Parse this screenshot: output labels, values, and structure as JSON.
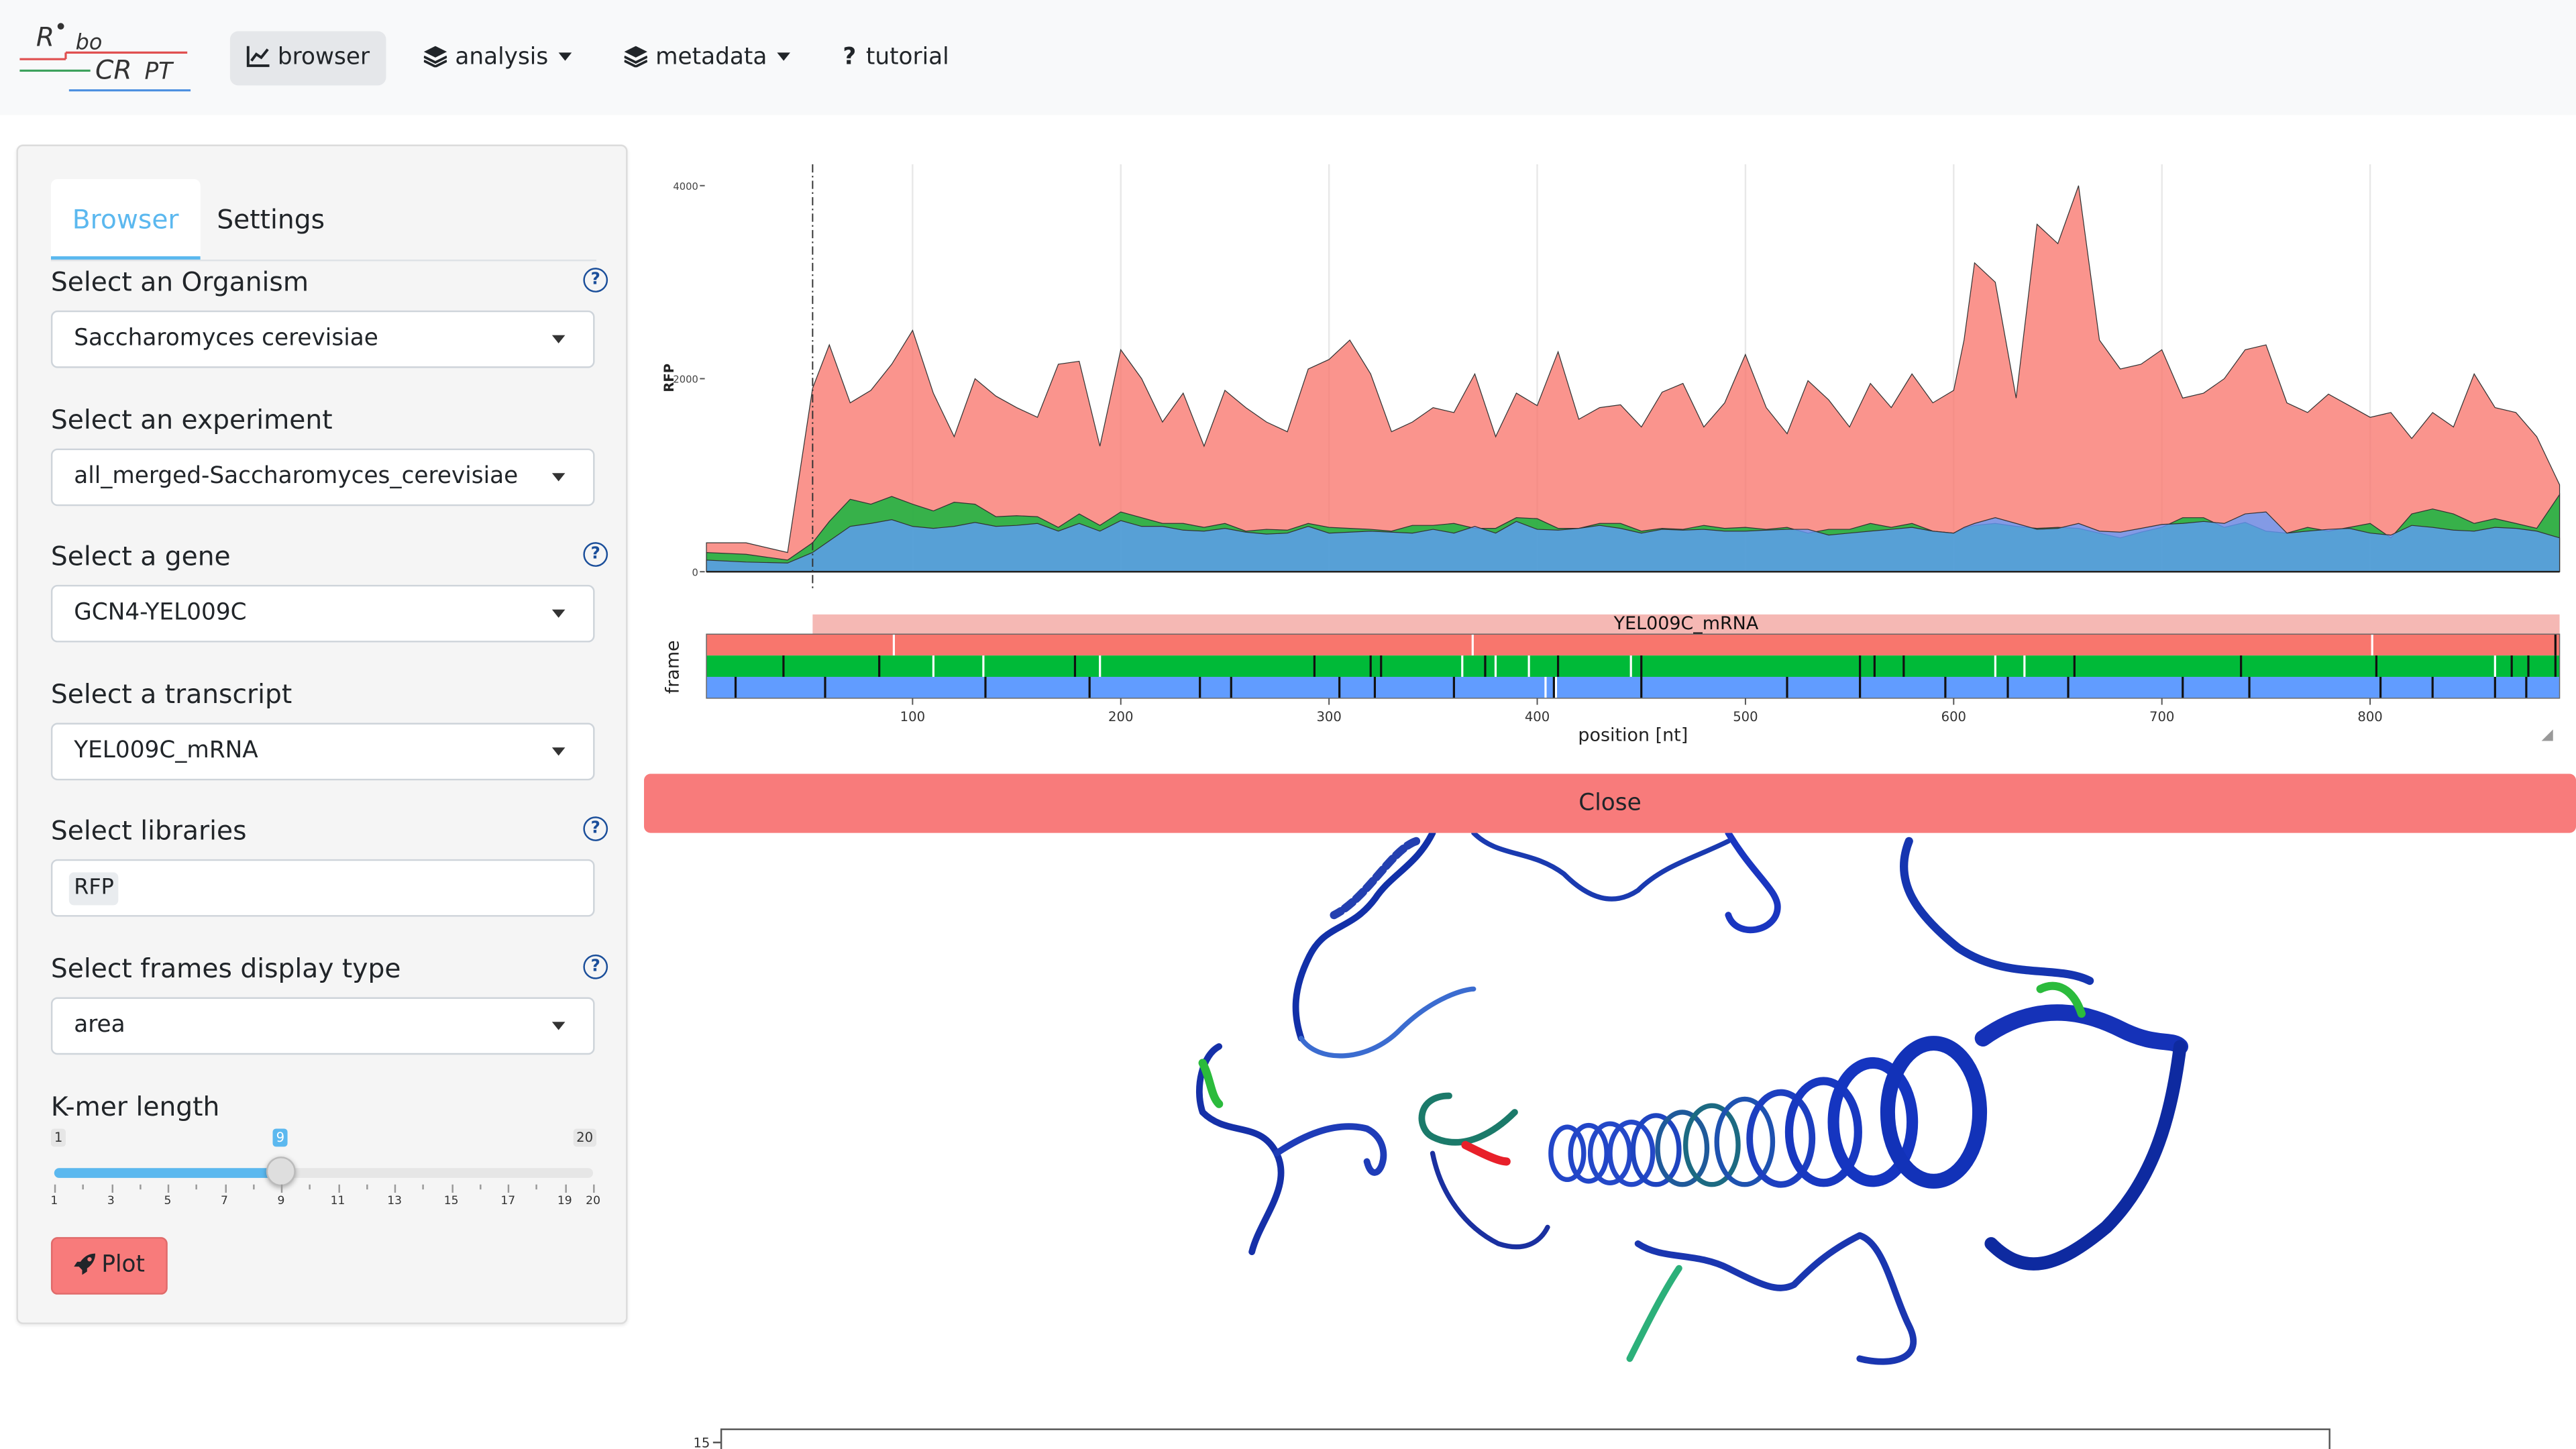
{
  "navbar": {
    "items": [
      {
        "label": "browser",
        "icon": "line-chart-icon",
        "active": true
      },
      {
        "label": "analysis",
        "icon": "layers-icon",
        "dropdown": true
      },
      {
        "label": "metadata",
        "icon": "layers-icon",
        "dropdown": true
      },
      {
        "label": "tutorial",
        "icon": "question-mark-icon"
      }
    ]
  },
  "sidebar": {
    "tabs": [
      {
        "label": "Browser",
        "active": true
      },
      {
        "label": "Settings",
        "active": false
      }
    ],
    "organism": {
      "label": "Select an Organism",
      "value": "Saccharomyces cerevisiae"
    },
    "experiment": {
      "label": "Select an experiment",
      "value": "all_merged-Saccharomyces_cerevisiae"
    },
    "gene": {
      "label": "Select a gene",
      "value": "GCN4-YEL009C"
    },
    "transcript": {
      "label": "Select a transcript",
      "value": "YEL009C_mRNA"
    },
    "libraries": {
      "label": "Select libraries",
      "value": "RFP"
    },
    "frames": {
      "label": "Select frames display type",
      "value": "area"
    },
    "kmer": {
      "label": "K-mer length",
      "min": 1,
      "max": 20,
      "value": 9,
      "min_label": "1",
      "max_label": "20",
      "value_label": "9",
      "ticks": [
        "1",
        "3",
        "5",
        "7",
        "9",
        "11",
        "13",
        "15",
        "17",
        "19",
        "20"
      ]
    },
    "plot_button": "Plot"
  },
  "close_button": "Close",
  "colors": {
    "frame0": "#f8766d",
    "frame1": "#00ba38",
    "frame2": "#619cff",
    "accent": "#5bb8ef",
    "button": "#f87b7b"
  },
  "chart_data": [
    {
      "type": "area",
      "ylabel": "RFP",
      "xlabel": "",
      "xlim": [
        1,
        891
      ],
      "ylim": [
        0,
        4000
      ],
      "yticks": [
        "0",
        "2000",
        "4000"
      ],
      "vline_x": 52,
      "grid": true,
      "x": [
        1,
        20,
        40,
        52,
        60,
        70,
        80,
        90,
        100,
        110,
        120,
        130,
        140,
        150,
        160,
        170,
        180,
        190,
        200,
        210,
        220,
        230,
        240,
        250,
        260,
        270,
        280,
        290,
        300,
        310,
        320,
        330,
        340,
        350,
        360,
        370,
        380,
        390,
        400,
        410,
        420,
        430,
        440,
        450,
        460,
        470,
        480,
        490,
        500,
        510,
        520,
        530,
        540,
        550,
        560,
        570,
        580,
        590,
        600,
        605,
        610,
        620,
        630,
        640,
        650,
        660,
        670,
        680,
        690,
        700,
        710,
        720,
        730,
        740,
        750,
        760,
        770,
        780,
        790,
        800,
        810,
        820,
        830,
        840,
        850,
        860,
        870,
        880,
        891
      ],
      "series": [
        {
          "values": [
            300,
            300,
            200,
            1900,
            2350,
            1750,
            1880,
            2150,
            2500,
            1850,
            1400,
            2000,
            1820,
            1700,
            1600,
            2150,
            2180,
            1300,
            2300,
            2000,
            1550,
            1850,
            1300,
            1880,
            1700,
            1550,
            1450,
            2100,
            2200,
            2400,
            2050,
            1450,
            1550,
            1700,
            1650,
            2050,
            1400,
            1850,
            1720,
            2280,
            1580,
            1700,
            1730,
            1500,
            1860,
            1950,
            1500,
            1750,
            2250,
            1700,
            1430,
            1980,
            1780,
            1500,
            1950,
            1700,
            2050,
            1750,
            1880,
            2400,
            3200,
            3000,
            1800,
            3600,
            3400,
            4000,
            2400,
            2100,
            2150,
            2300,
            1800,
            1850,
            2000,
            2300,
            2350,
            1750,
            1650,
            1840,
            1720,
            1600,
            1650,
            1380,
            1650,
            1500,
            2050,
            1700,
            1650,
            1400,
            900
          ]
        },
        {
          "values": [
            200,
            180,
            120,
            300,
            520,
            750,
            700,
            780,
            700,
            630,
            720,
            700,
            570,
            580,
            570,
            460,
            600,
            480,
            620,
            560,
            500,
            500,
            460,
            500,
            420,
            440,
            430,
            500,
            460,
            450,
            440,
            420,
            480,
            480,
            500,
            450,
            450,
            560,
            550,
            450,
            450,
            500,
            500,
            420,
            450,
            440,
            480,
            450,
            460,
            440,
            460,
            400,
            440,
            440,
            500,
            460,
            500,
            420,
            400,
            450,
            480,
            500,
            470,
            450,
            460,
            450,
            400,
            350,
            410,
            460,
            560,
            560,
            460,
            510,
            420,
            400,
            460,
            420,
            460,
            500,
            350,
            600,
            650,
            600,
            500,
            550,
            500,
            450,
            800
          ]
        },
        {
          "values": [
            120,
            100,
            90,
            200,
            320,
            470,
            500,
            540,
            470,
            450,
            470,
            510,
            470,
            480,
            500,
            420,
            500,
            420,
            530,
            470,
            470,
            430,
            420,
            450,
            410,
            390,
            400,
            470,
            400,
            410,
            420,
            410,
            400,
            440,
            400,
            470,
            400,
            520,
            440,
            430,
            450,
            480,
            450,
            400,
            440,
            430,
            440,
            420,
            420,
            430,
            440,
            440,
            380,
            400,
            420,
            440,
            460,
            420,
            400,
            460,
            500,
            560,
            500,
            440,
            450,
            500,
            420,
            410,
            450,
            490,
            500,
            520,
            500,
            600,
            620,
            400,
            420,
            440,
            450,
            400,
            380,
            480,
            460,
            430,
            420,
            460,
            450,
            420,
            350
          ]
        }
      ]
    },
    {
      "type": "track",
      "title": "YEL009C_mRNA",
      "ylabel": "frame",
      "xlabel": "position [nt]",
      "xlim": [
        1,
        891
      ],
      "cds_range": [
        52,
        891
      ],
      "xticks": [
        100,
        200,
        300,
        400,
        500,
        600,
        700,
        800
      ],
      "frames": [
        {
          "name": "0",
          "white_marks": [
            91,
            369,
            801
          ],
          "black_marks": [
            889
          ]
        },
        {
          "name": "1",
          "white_marks": [
            110,
            134,
            190,
            364,
            380,
            396,
            445,
            620,
            634,
            860
          ],
          "black_marks": [
            38,
            84,
            178,
            293,
            320,
            325,
            375,
            410,
            450,
            555,
            562,
            576,
            658,
            738,
            803,
            868,
            876,
            889
          ]
        },
        {
          "name": "2",
          "white_marks": [
            404,
            409
          ],
          "black_marks": [
            15,
            58,
            135,
            185,
            238,
            253,
            305,
            322,
            360,
            408,
            450,
            520,
            555,
            596,
            626,
            655,
            710,
            742,
            805,
            830,
            860,
            875
          ]
        }
      ]
    }
  ]
}
